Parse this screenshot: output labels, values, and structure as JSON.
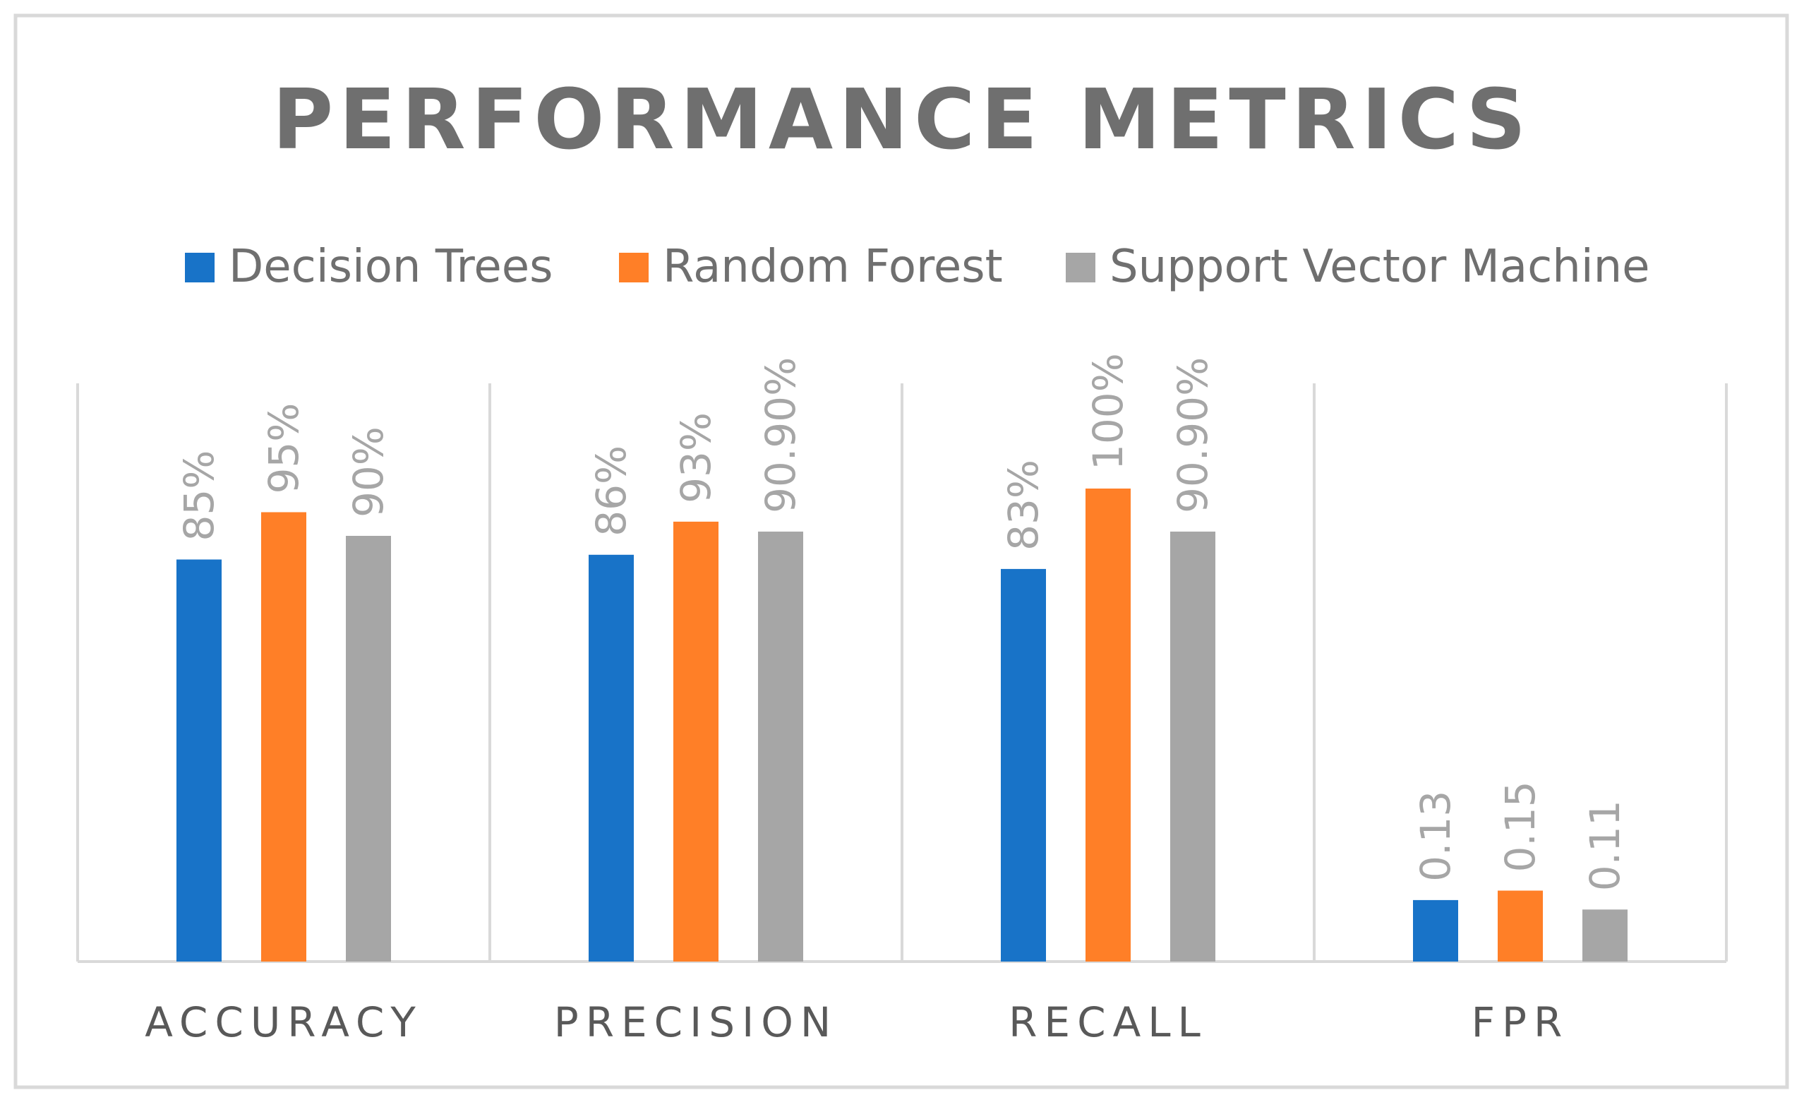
{
  "chart_data": {
    "type": "bar",
    "title": "PERFORMANCE METRICS",
    "xlabel": "",
    "ylabel": "",
    "categories": [
      "ACCURACY",
      "PRECISION",
      "RECALL",
      "FPR"
    ],
    "series": [
      {
        "name": "Decision Trees",
        "color": "#1873C8",
        "values": [
          0.85,
          0.86,
          0.83,
          0.13
        ],
        "labels": [
          "85%",
          "86%",
          "83%",
          "0.13"
        ]
      },
      {
        "name": "Random Forest",
        "color": "#FF7F27",
        "values": [
          0.95,
          0.93,
          1.0,
          0.15
        ],
        "labels": [
          "95%",
          "93%",
          "100%",
          "0.15"
        ]
      },
      {
        "name": "Support Vector Machine",
        "color": "#A6A6A6",
        "values": [
          0.9,
          0.909,
          0.909,
          0.11
        ],
        "labels": [
          "90%",
          "90.90%",
          "90.90%",
          "0.11"
        ]
      }
    ],
    "ylim": [
      0,
      1.2
    ],
    "grid": false,
    "legend_position": "top"
  },
  "colors": {
    "frame": "#D9D9D9",
    "title": "#6F6F6F",
    "legend_text": "#6F6F6F",
    "axis_text": "#595959",
    "data_label": "#A6A6A6",
    "gridline": "#D9D9D9"
  }
}
